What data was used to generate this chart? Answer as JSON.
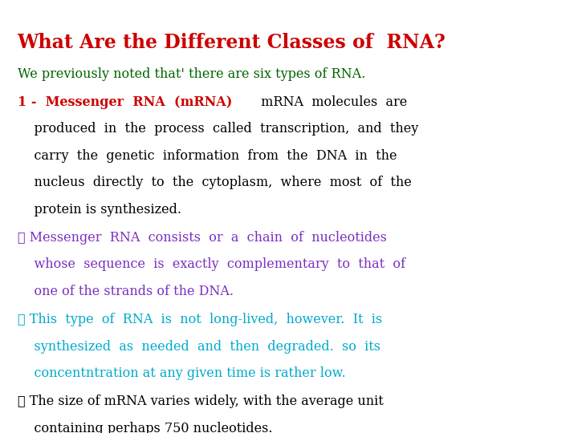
{
  "title": "What Are the Different Classes of  RNA?",
  "title_color": "#cc0000",
  "bg_color": "#ffffff",
  "intro_text": "We previously noted that' there are six types of RNA.",
  "intro_color": "#006400",
  "block1_bold": "1 -  Messenger  RNA  (mRNA)",
  "block1_bold_color": "#cc0000",
  "block1_line1_rest": " mRNA  molecules  are",
  "block1_lines": [
    "    produced  in  the  process  called  transcription,  and  they",
    "    carry  the  genetic  information  from  the  DNA  in  the",
    "    nucleus  directly  to  the  cytoplasm,  where  most  of  the",
    "    protein is synthesized."
  ],
  "block1_rest_color": "#000000",
  "bullet2_lines": [
    "✓ Messenger  RNA  consists  or  a  chain  of  nucleotides",
    "    whose  sequence  is  exactly  complementary  to  that  of",
    "    one of the strands of the DNA."
  ],
  "bullet2_color": "#7b2fbe",
  "bullet3_lines": [
    "✓ This  type  of  RNA  is  not  long-lived,  however.  It  is",
    "    synthesized  as  needed  and  then  degraded.  so  its",
    "    concentntration at any given time is rather low."
  ],
  "bullet3_color": "#00aacc",
  "bullet4_lines": [
    "✓ The size of mRNA varies widely, with the average unit",
    "    containing perhaps 750 nucleotides."
  ],
  "bullet4_color": "#000000"
}
